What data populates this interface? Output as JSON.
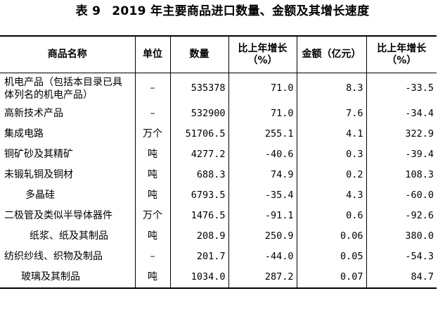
{
  "table_title": {
    "label": "表 9",
    "text": "2019 年主要商品进口数量、金额及其增长速度"
  },
  "columns": {
    "name": "商品名称",
    "unit": "单位",
    "quantity": "数量",
    "qty_growth": "比上年增长（%）",
    "amount": "金额（亿元）",
    "amt_growth": "比上年增长（%）"
  },
  "rows": [
    {
      "name": "机电产品（包括本目录已具体列名的机电产品）",
      "unit": "–",
      "quantity": "535378",
      "qty_growth": "71.0",
      "amount": "8.3",
      "amt_growth": "-33.5"
    },
    {
      "name": "高新技术产品",
      "unit": "–",
      "quantity": "532900",
      "qty_growth": "71.0",
      "amount": "7.6",
      "amt_growth": "-34.4"
    },
    {
      "name": "集成电路",
      "unit": "万个",
      "quantity": "51706.5",
      "qty_growth": "255.1",
      "amount": "4.1",
      "amt_growth": "322.9"
    },
    {
      "name": "铜矿砂及其精矿",
      "unit": "吨",
      "quantity": "4277.2",
      "qty_growth": "-40.6",
      "amount": "0.3",
      "amt_growth": "-39.4"
    },
    {
      "name": "未锻轧铜及铜材",
      "unit": "吨",
      "quantity": "688.3",
      "qty_growth": "74.9",
      "amount": "0.2",
      "amt_growth": "108.3"
    },
    {
      "name": "多晶硅",
      "unit": "吨",
      "quantity": "6793.5",
      "qty_growth": "-35.4",
      "amount": "4.3",
      "amt_growth": "-60.0"
    },
    {
      "name": "二极管及类似半导体器件",
      "unit": "万个",
      "quantity": "1476.5",
      "qty_growth": "-91.1",
      "amount": "0.6",
      "amt_growth": "-92.6"
    },
    {
      "name": "纸浆、纸及其制品",
      "unit": "吨",
      "quantity": "208.9",
      "qty_growth": "250.9",
      "amount": "0.06",
      "amt_growth": "380.0"
    },
    {
      "name": "纺织纱线、织物及制品",
      "unit": "–",
      "quantity": "201.7",
      "qty_growth": "-44.0",
      "amount": "0.05",
      "amt_growth": "-54.3"
    },
    {
      "name": "玻璃及其制品",
      "unit": "吨",
      "quantity": "1034.0",
      "qty_growth": "287.2",
      "amount": "0.07",
      "amt_growth": "84.7"
    }
  ]
}
